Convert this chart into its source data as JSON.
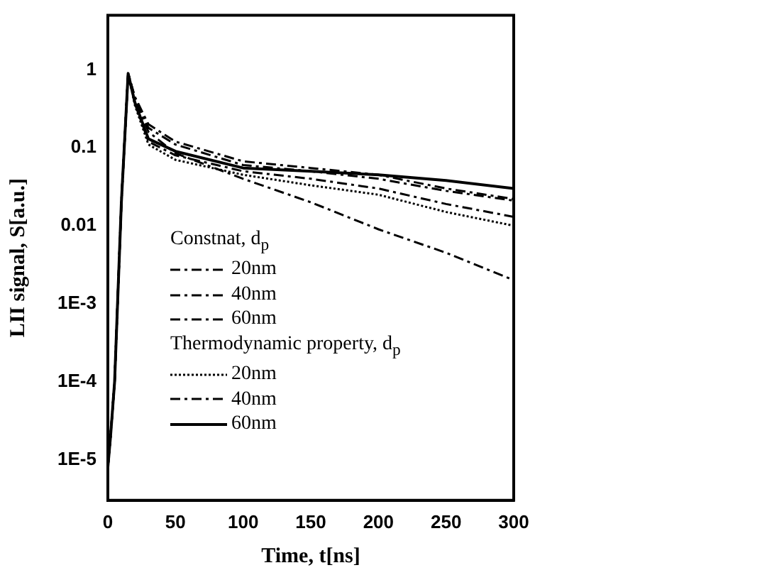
{
  "chart_data": {
    "type": "line",
    "xlabel": "Time, t[ns]",
    "ylabel": "LII signal, S[a.u.]",
    "x": [
      0,
      2,
      5,
      10,
      15,
      20,
      30,
      50,
      100,
      150,
      200,
      250,
      300
    ],
    "xlim": [
      0,
      300
    ],
    "xticks": [
      0,
      50,
      100,
      150,
      200,
      250,
      300
    ],
    "ylim": [
      3e-06,
      5
    ],
    "log": "y",
    "yticks": [
      {
        "value": 1,
        "label": "1"
      },
      {
        "value": 0.1,
        "label": "0.1"
      },
      {
        "value": 0.01,
        "label": "0.01"
      },
      {
        "value": 0.001,
        "label": "1E-3"
      },
      {
        "value": 0.0001,
        "label": "1E-4"
      },
      {
        "value": 1e-05,
        "label": "1E-5"
      }
    ],
    "legend": "bottom left",
    "legend_title": "Constnat, d$_{p}$",
    "annotations": [
      "Thermodynamic property, d$_{p}$"
    ],
    "marker": "none",
    "grid": false,
    "series": [
      {
        "name": "20nm",
        "color": "#000000",
        "line_style": "dashed",
        "values": [
          8e-06,
          2e-05,
          0.0001,
          0.02,
          0.9,
          0.42,
          0.16,
          0.085,
          0.04,
          0.02,
          0.009,
          0.0045,
          0.002
        ]
      },
      {
        "name": "40nm",
        "color": "#000000",
        "line_style": "dashed",
        "values": [
          8e-06,
          2e-05,
          0.0001,
          0.02,
          0.9,
          0.44,
          0.18,
          0.11,
          0.06,
          0.05,
          0.04,
          0.028,
          0.021
        ]
      },
      {
        "name": "60nm",
        "color": "#000000",
        "line_style": "dashed",
        "values": [
          8e-06,
          2e-05,
          0.0001,
          0.02,
          0.9,
          0.45,
          0.2,
          0.12,
          0.067,
          0.055,
          0.045,
          0.03,
          0.022
        ]
      },
      {
        "name": "20nm",
        "color": "#000000",
        "line_style": "dotted",
        "values": [
          8e-06,
          2e-05,
          0.0001,
          0.02,
          0.9,
          0.35,
          0.11,
          0.07,
          0.045,
          0.033,
          0.025,
          0.015,
          0.01
        ]
      },
      {
        "name": "40nm",
        "color": "#000000",
        "line_style": "dashed",
        "values": [
          8e-06,
          2e-05,
          0.0001,
          0.02,
          0.9,
          0.37,
          0.12,
          0.08,
          0.05,
          0.04,
          0.03,
          0.019,
          0.013
        ]
      },
      {
        "name": "60nm",
        "color": "#000000",
        "line_style": "solid",
        "values": [
          8e-06,
          2e-05,
          0.0001,
          0.02,
          0.9,
          0.38,
          0.13,
          0.09,
          0.055,
          0.05,
          0.045,
          0.038,
          0.03
        ]
      }
    ]
  }
}
